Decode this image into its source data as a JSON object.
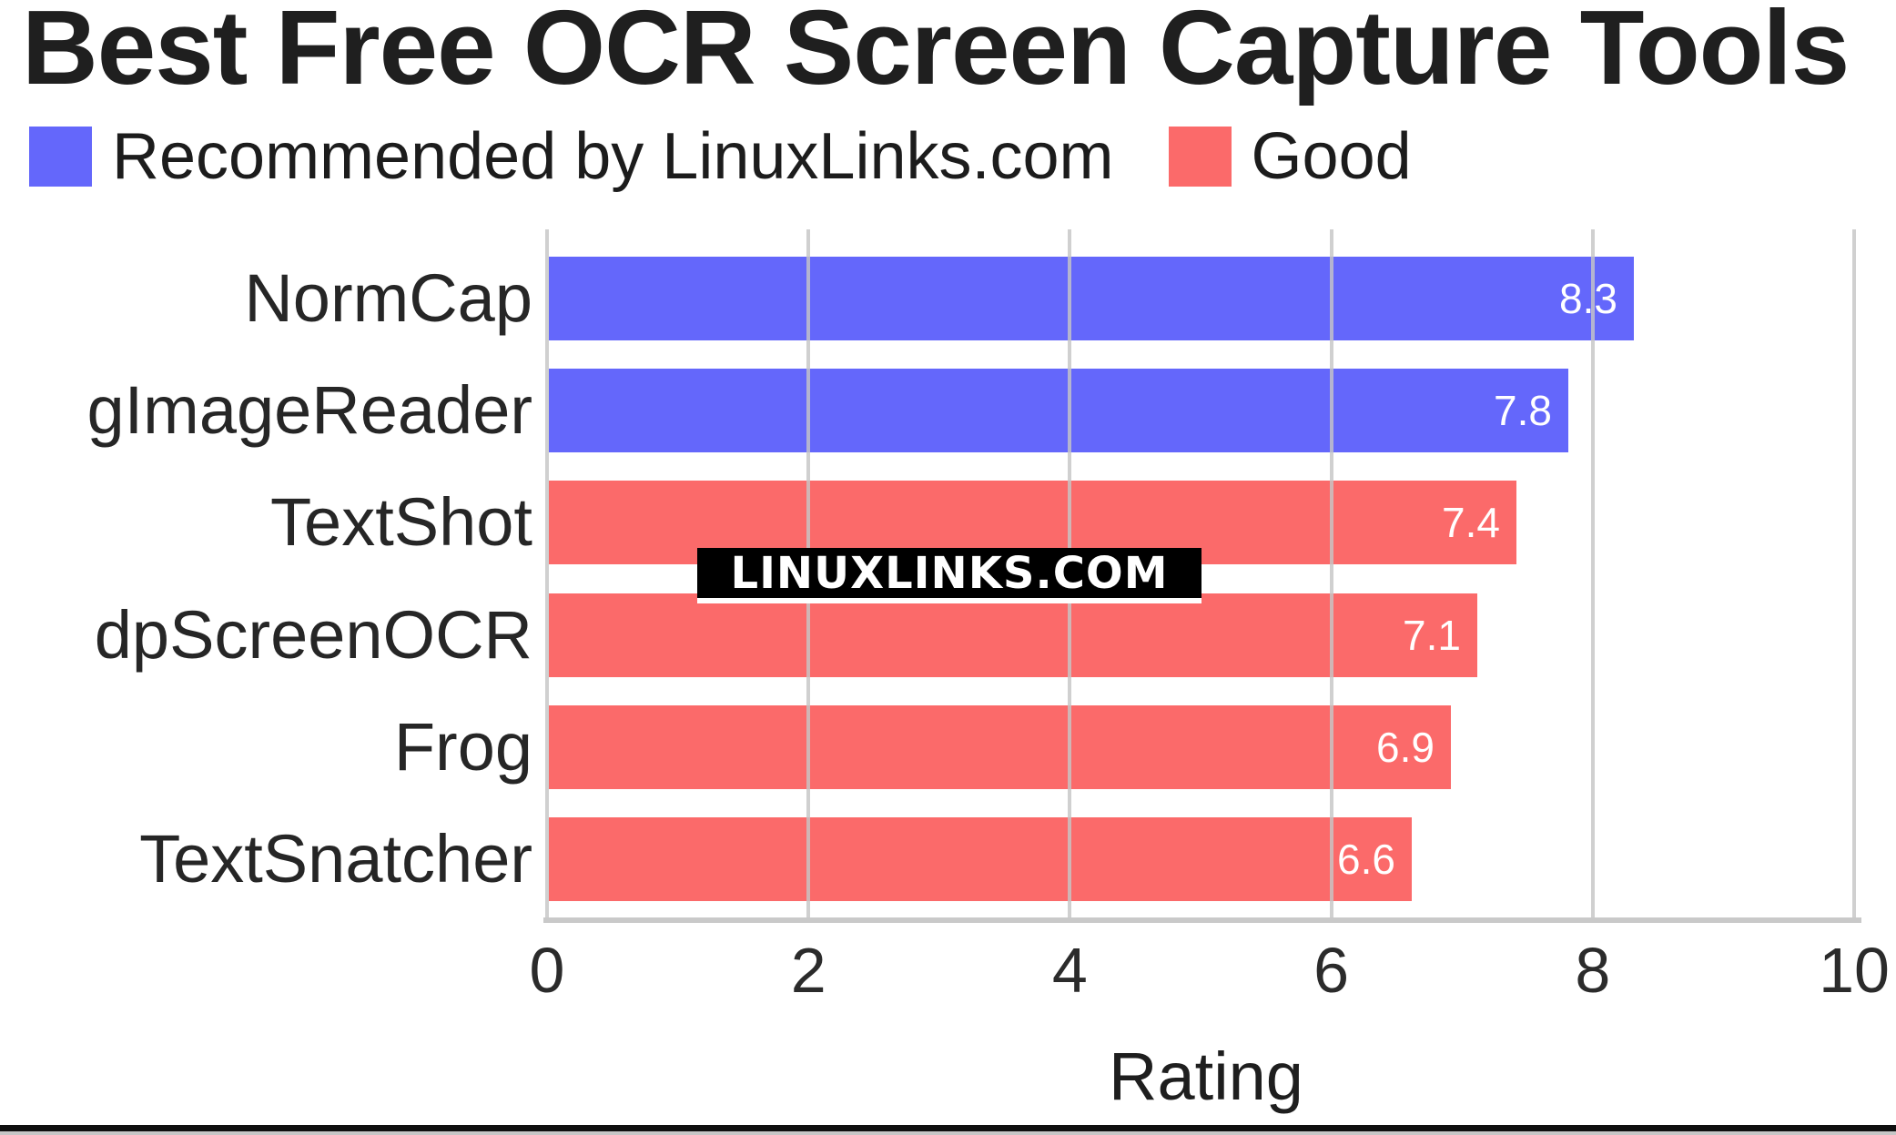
{
  "chart_data": {
    "type": "bar",
    "orientation": "horizontal",
    "title": "Best Free OCR Screen Capture Tools",
    "xlabel": "Rating",
    "xlim": [
      0,
      10
    ],
    "xticks": [
      0,
      2,
      4,
      6,
      8,
      10
    ],
    "grid": true,
    "legend_position": "top",
    "categories": [
      "NormCap",
      "gImageReader",
      "TextShot",
      "dpScreenOCR",
      "Frog",
      "TextSnatcher"
    ],
    "values": [
      8.3,
      7.8,
      7.4,
      7.1,
      6.9,
      6.6
    ],
    "value_labels": [
      "8.3",
      "7.8",
      "7.4",
      "7.1",
      "6.9",
      "6.6"
    ],
    "series_membership": [
      "recommended",
      "recommended",
      "good",
      "good",
      "good",
      "good"
    ],
    "legend": [
      {
        "name": "Recommended by LinuxLinks.com",
        "key": "recommended",
        "color": "#6467fb"
      },
      {
        "name": "Good",
        "key": "good",
        "color": "#fb6a6a"
      }
    ],
    "colors": {
      "recommended": "#6467fb",
      "good": "#fb6a6a",
      "gridline": "#c9c9c9",
      "bar_value_text": "#ffffff",
      "axis_text": "#2b2b2b",
      "title_text": "#1f1f1f"
    },
    "watermark": "LINUXLINKS.COM"
  }
}
